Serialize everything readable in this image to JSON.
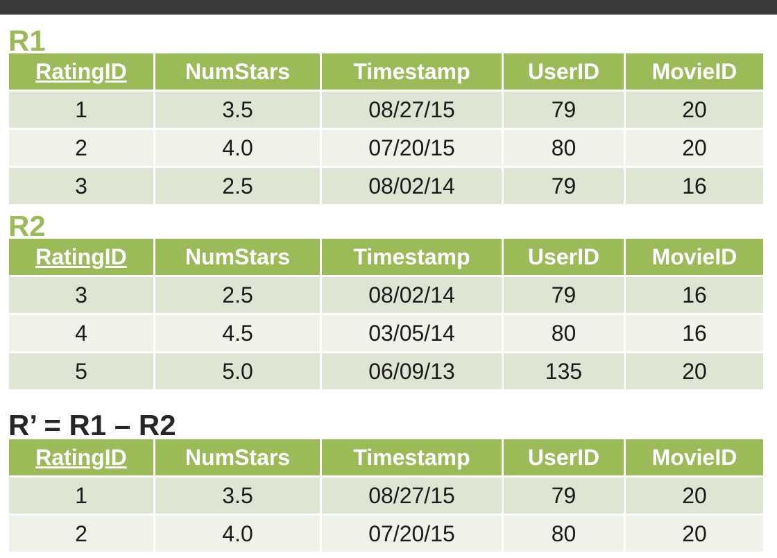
{
  "columns": [
    "RatingID",
    "NumStars",
    "Timestamp",
    "UserID",
    "MovieID"
  ],
  "r1": {
    "title": "R1",
    "rows": [
      [
        "1",
        "3.5",
        "08/27/15",
        "79",
        "20"
      ],
      [
        "2",
        "4.0",
        "07/20/15",
        "80",
        "20"
      ],
      [
        "3",
        "2.5",
        "08/02/14",
        "79",
        "16"
      ]
    ]
  },
  "r2": {
    "title": "R2",
    "rows": [
      [
        "3",
        "2.5",
        "08/02/14",
        "79",
        "16"
      ],
      [
        "4",
        "4.5",
        "03/05/14",
        "80",
        "16"
      ],
      [
        "5",
        "5.0",
        "06/09/13",
        "135",
        "20"
      ]
    ]
  },
  "result": {
    "title": "R’ = R1 – R2",
    "rows": [
      [
        "1",
        "3.5",
        "08/27/15",
        "79",
        "20"
      ],
      [
        "2",
        "4.0",
        "07/20/15",
        "80",
        "20"
      ]
    ]
  },
  "colors": {
    "header": "#9bbb59",
    "row_dark": "#dfe5d3",
    "row_light": "#eff2e9",
    "topbar": "#3b3b3b"
  }
}
